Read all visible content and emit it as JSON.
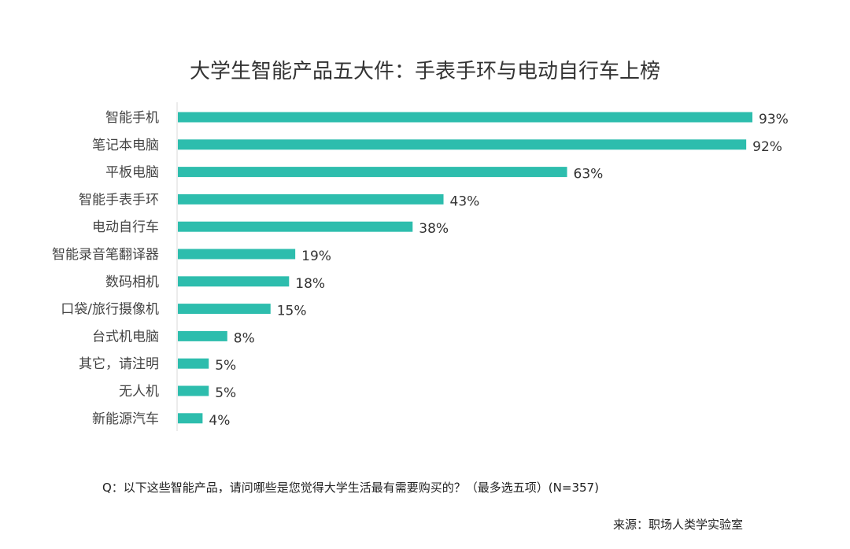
{
  "chart_data": {
    "type": "bar",
    "orientation": "horizontal",
    "title": "大学生智能产品五大件：手表手环与电动自行车上榜",
    "categories": [
      "智能手机",
      "笔记本电脑",
      "平板电脑",
      "智能手表手环",
      "电动自行车",
      "智能录音笔翻译器",
      "数码相机",
      "口袋/旅行摄像机",
      "台式机电脑",
      "其它，请注明",
      "无人机",
      "新能源汽车"
    ],
    "values": [
      93,
      92,
      63,
      43,
      38,
      19,
      18,
      15,
      8,
      5,
      5,
      4
    ],
    "data_labels": [
      "93%",
      "92%",
      "63%",
      "43%",
      "38%",
      "19%",
      "18%",
      "15%",
      "8%",
      "5%",
      "5%",
      "4%"
    ],
    "unit": "%",
    "xlim": [
      0,
      100
    ],
    "grid": false,
    "legend": "none",
    "bar_color": "#2dbdad"
  },
  "question": "Q：以下这些智能产品，请问哪些是您觉得大学生活最有需要购买的？（最多选五项）(N=357)",
  "source": "来源：职场人类学实验室"
}
